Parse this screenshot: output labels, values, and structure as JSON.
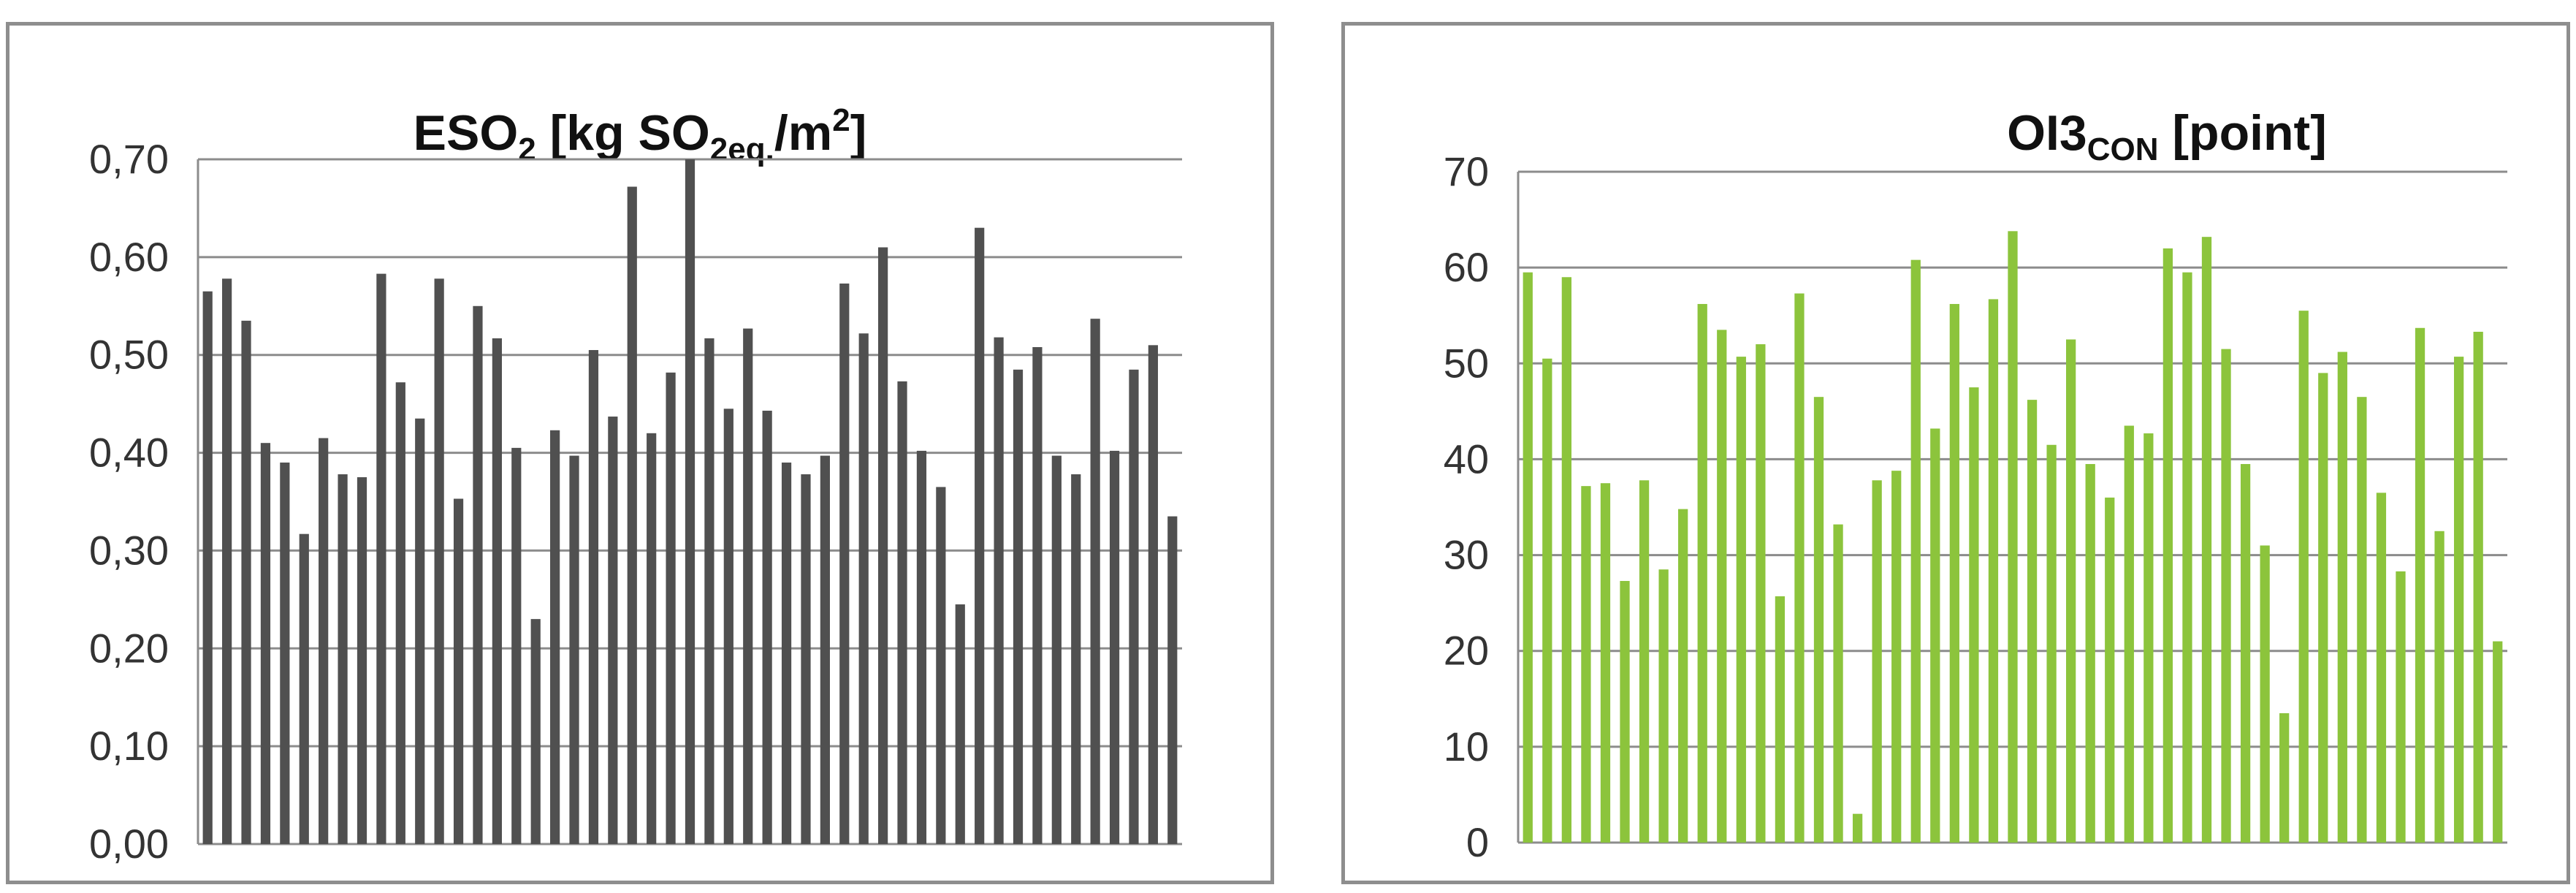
{
  "chart_data": [
    {
      "type": "bar",
      "title_main": "ESO",
      "title_sub": "2",
      "title_mid": " [kg SO",
      "title_sub2": "2eq.",
      "title_mid2": "/m",
      "title_sup": "2",
      "title_end": "]",
      "ylim": [
        0,
        0.7
      ],
      "yticks": [
        "0,00",
        "0,10",
        "0,20",
        "0,30",
        "0,40",
        "0,50",
        "0,60",
        "0,70"
      ],
      "ytick_values": [
        0,
        0.1,
        0.2,
        0.3,
        0.4,
        0.5,
        0.6,
        0.7
      ],
      "grid": true,
      "color": "#505050",
      "values": [
        0.565,
        0.578,
        0.535,
        0.41,
        0.39,
        0.317,
        0.415,
        0.378,
        0.375,
        0.583,
        0.472,
        0.435,
        0.578,
        0.353,
        0.55,
        0.517,
        0.405,
        0.23,
        0.423,
        0.397,
        0.505,
        0.437,
        0.672,
        0.42,
        0.482,
        0.7,
        0.517,
        0.445,
        0.527,
        0.443,
        0.39,
        0.378,
        0.397,
        0.573,
        0.522,
        0.61,
        0.473,
        0.402,
        0.365,
        0.245,
        0.63,
        0.518,
        0.485,
        0.508,
        0.397,
        0.378,
        0.537,
        0.402,
        0.485,
        0.51,
        0.335
      ]
    },
    {
      "type": "bar",
      "title_main": "OI3",
      "title_sub": "CON",
      "title_end": " [point]",
      "ylim": [
        0,
        70
      ],
      "yticks": [
        "0",
        "10",
        "20",
        "30",
        "40",
        "50",
        "60",
        "70"
      ],
      "ytick_values": [
        0,
        10,
        20,
        30,
        40,
        50,
        60,
        70
      ],
      "grid": true,
      "color": "#8cc43c",
      "values": [
        59.5,
        50.5,
        59,
        37.2,
        37.5,
        27.3,
        37.8,
        28.5,
        34.8,
        56.2,
        53.5,
        50.7,
        52,
        25.7,
        57.3,
        46.5,
        33.2,
        3,
        37.8,
        38.8,
        60.8,
        43.2,
        56.2,
        47.5,
        56.7,
        63.8,
        46.2,
        41.5,
        52.5,
        39.5,
        36,
        43.5,
        42.7,
        62,
        59.5,
        63.2,
        51.5,
        39.5,
        31,
        13.5,
        55.5,
        49,
        51.2,
        46.5,
        36.5,
        28.3,
        53.7,
        32.5,
        50.7,
        53.3,
        21
      ]
    }
  ]
}
